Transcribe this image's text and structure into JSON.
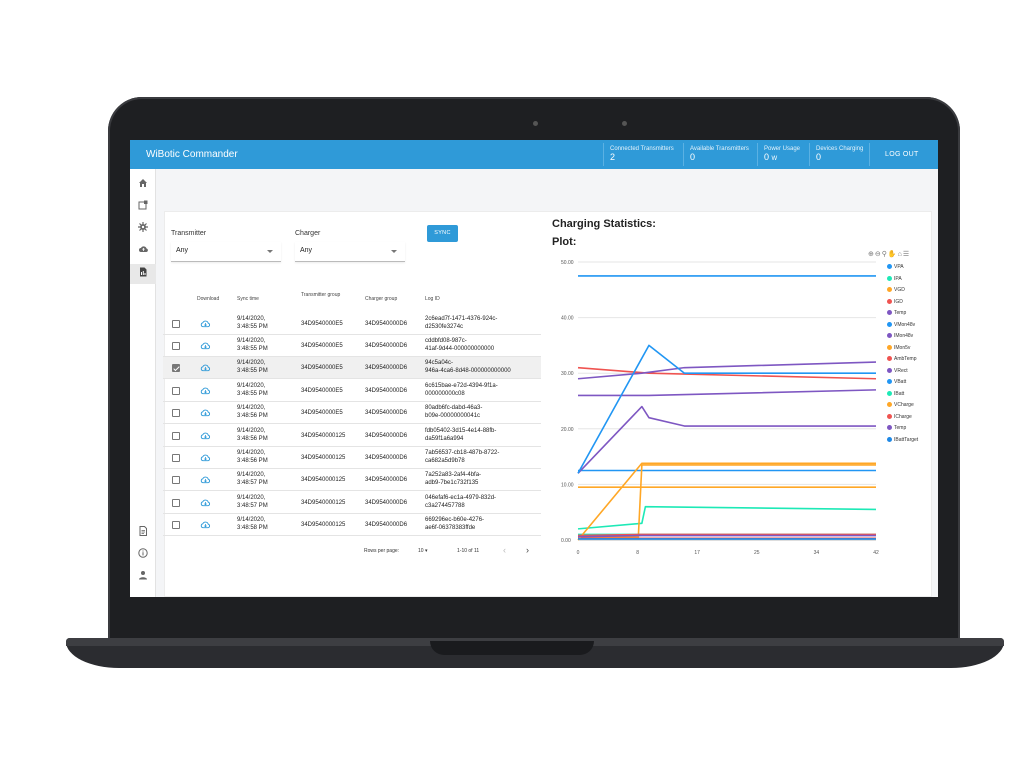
{
  "app": {
    "title": "WiBotic Commander",
    "logout_label": "LOG OUT"
  },
  "stats": [
    {
      "label": "Connected Transmitters",
      "value": "2",
      "unit": ""
    },
    {
      "label": "Available Transmitters",
      "value": "0",
      "unit": ""
    },
    {
      "label": "Power Usage",
      "value": "0",
      "unit": "W"
    },
    {
      "label": "Devices Charging",
      "value": "0",
      "unit": ""
    }
  ],
  "sidebar": {
    "items": [
      "home-icon",
      "devices-icon",
      "settings-icon",
      "cloud-upload-icon",
      "logs-icon",
      "document-icon",
      "info-icon",
      "user-icon"
    ]
  },
  "filters": {
    "transmitter_label": "Transmitter",
    "transmitter_value": "Any",
    "charger_label": "Charger",
    "charger_value": "Any",
    "sync_label": "SYNC"
  },
  "table": {
    "headers": [
      "Download",
      "Sync time",
      "Transmitter group",
      "Charger group",
      "Log ID"
    ],
    "rows": [
      {
        "checked": false,
        "sync": [
          "9/14/2020,",
          "3:48:55 PM"
        ],
        "tx": "34D9540000E5",
        "ch": "34D9540000D6",
        "log": [
          "2c6ead7f-1471-4376-924c-",
          "d2530fe3274c"
        ]
      },
      {
        "checked": false,
        "sync": [
          "9/14/2020,",
          "3:48:55 PM"
        ],
        "tx": "34D9540000E5",
        "ch": "34D9540000D6",
        "log": [
          "cddbfd08-987c-",
          "41af-9d44-000000000000"
        ]
      },
      {
        "checked": true,
        "sync": [
          "9/14/2020,",
          "3:48:55 PM"
        ],
        "tx": "34D9540000E5",
        "ch": "34D9540000D6",
        "log": [
          "94c5a04c-",
          "946a-4ca6-8d48-000000000000"
        ]
      },
      {
        "checked": false,
        "sync": [
          "9/14/2020,",
          "3:48:55 PM"
        ],
        "tx": "34D9540000E5",
        "ch": "34D9540000D6",
        "log": [
          "6c615bae-e72d-4394-9f1a-",
          "000000000c08"
        ]
      },
      {
        "checked": false,
        "sync": [
          "9/14/2020,",
          "3:48:56 PM"
        ],
        "tx": "34D9540000E5",
        "ch": "34D9540000D6",
        "log": [
          "80adb6fc-dabd-46a3-",
          "b09e-00000000041c"
        ]
      },
      {
        "checked": false,
        "sync": [
          "9/14/2020,",
          "3:48:56 PM"
        ],
        "tx": "34D9540000125",
        "ch": "34D9540000D6",
        "log": [
          "fdb05402-3d15-4e14-88fb-",
          "da59f1a6a994"
        ]
      },
      {
        "checked": false,
        "sync": [
          "9/14/2020,",
          "3:48:56 PM"
        ],
        "tx": "34D9540000125",
        "ch": "34D9540000D6",
        "log": [
          "7ab56537-cb18-487b-8722-",
          "ca682a5d9b78"
        ]
      },
      {
        "checked": false,
        "sync": [
          "9/14/2020,",
          "3:48:57 PM"
        ],
        "tx": "34D9540000125",
        "ch": "34D9540000D6",
        "log": [
          "7a252a83-2af4-4bfa-",
          "adb9-7be1c732f135"
        ]
      },
      {
        "checked": false,
        "sync": [
          "9/14/2020,",
          "3:48:57 PM"
        ],
        "tx": "34D9540000125",
        "ch": "34D9540000D6",
        "log": [
          "046efaf6-ec1a-4979-832d-",
          "c3a274457788"
        ]
      },
      {
        "checked": false,
        "sync": [
          "9/14/2020,",
          "3:48:58 PM"
        ],
        "tx": "34D9540000125",
        "ch": "34D9540000D6",
        "log": [
          "669296ec-b60e-4276-",
          "ae6f-06378383ffde"
        ]
      }
    ],
    "pager": {
      "rows_per_page_label": "Rows per page:",
      "rows_per_page": "10",
      "range": "1-10 of 11"
    }
  },
  "chart": {
    "heading": "Charging Statistics:",
    "subheading": "Plot:"
  },
  "chart_data": {
    "type": "line",
    "xlim": [
      0,
      42
    ],
    "ylim": [
      0,
      50
    ],
    "xticks": [
      "0",
      "8",
      "17",
      "25",
      "34",
      "42"
    ],
    "yticks": [
      "0.00",
      "10.00",
      "20.00",
      "30.00",
      "40.00",
      "50.00"
    ],
    "grid": true,
    "legend": "right",
    "series": [
      {
        "name": "VPA",
        "color": "#2196f3",
        "x": [
          0,
          42
        ],
        "y": [
          47.5,
          47.5
        ]
      },
      {
        "name": "IPA",
        "color": "#1de9b6",
        "x": [
          0,
          9,
          9.5,
          42
        ],
        "y": [
          2,
          3,
          6,
          5.5
        ]
      },
      {
        "name": "VGD",
        "color": "#ffa726",
        "x": [
          0,
          9,
          9.5,
          42
        ],
        "y": [
          9.5,
          9.5,
          9.5,
          9.5
        ]
      },
      {
        "name": "IGD",
        "color": "#ef5350",
        "x": [
          0,
          10,
          42
        ],
        "y": [
          31,
          30,
          29
        ]
      },
      {
        "name": "Temp",
        "color": "#7e57c2",
        "x": [
          0,
          10,
          42
        ],
        "y": [
          26,
          26,
          27
        ]
      },
      {
        "name": "VMon48v",
        "color": "#2196f3",
        "x": [
          0,
          9.5,
          42
        ],
        "y": [
          12.5,
          12.5,
          12.5
        ]
      },
      {
        "name": "IMon48v",
        "color": "#7e57c2",
        "x": [
          0,
          9,
          15,
          42
        ],
        "y": [
          29,
          30,
          31,
          32
        ]
      },
      {
        "name": "IMon5v",
        "color": "#ffa726",
        "x": [
          0,
          8.5,
          9,
          42
        ],
        "y": [
          0.5,
          0.5,
          13.5,
          13.5
        ]
      },
      {
        "name": "AmbTemp",
        "color": "#ef5350",
        "x": [
          0,
          42
        ],
        "y": [
          0.3,
          0.3
        ]
      },
      {
        "name": "VRect",
        "color": "#7e57c2",
        "x": [
          0,
          9,
          10,
          15,
          42
        ],
        "y": [
          12,
          24,
          22,
          20.5,
          20.5
        ]
      },
      {
        "name": "VBatt",
        "color": "#2196f3",
        "x": [
          0,
          10,
          15,
          42
        ],
        "y": [
          12,
          35,
          30,
          30
        ]
      },
      {
        "name": "IBatt",
        "color": "#1de9b6",
        "x": [
          0,
          42
        ],
        "y": [
          1,
          1
        ]
      },
      {
        "name": "VCharge",
        "color": "#ffa726",
        "x": [
          0,
          9,
          42
        ],
        "y": [
          0,
          13.8,
          13.8
        ]
      },
      {
        "name": "ICharge",
        "color": "#ef5350",
        "x": [
          0,
          9,
          42
        ],
        "y": [
          0.8,
          1,
          1
        ]
      },
      {
        "name": "Temp",
        "color": "#7e57c2",
        "x": [
          0,
          9,
          42
        ],
        "y": [
          0.6,
          0.8,
          0.8
        ]
      },
      {
        "name": "IBattTarget",
        "color": "#1e88e5",
        "x": [
          0,
          42
        ],
        "y": [
          0.2,
          0.2
        ]
      }
    ]
  }
}
